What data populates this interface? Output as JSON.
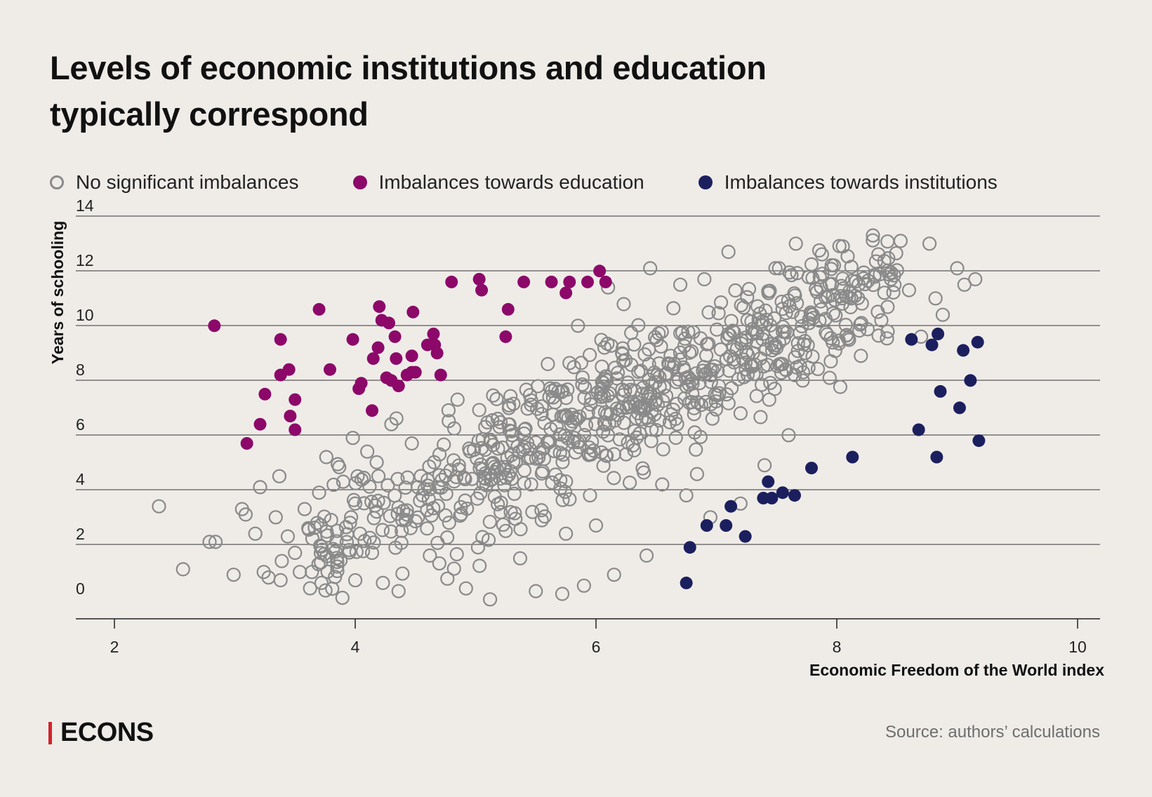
{
  "brand": {
    "name": "ECONS",
    "accent": "#D2232A"
  },
  "source": "Source: authors’ calculations",
  "chart_data": {
    "type": "scatter",
    "title": "Levels of economic institutions and education typically correspond",
    "xlabel": "Economic Freedom of the World index",
    "ylabel": "Years of schooling",
    "xlim": [
      1.7,
      10.2
    ],
    "ylim": [
      -0.4,
      14
    ],
    "xticks": [
      2,
      4,
      6,
      8,
      10
    ],
    "yticks": [
      0,
      2,
      4,
      6,
      8,
      10,
      12,
      14
    ],
    "grid": "horizontal",
    "legend_position": "top",
    "series": [
      {
        "name": "No significant imbalances",
        "marker": "open-circle",
        "color": "#8A8A8A",
        "cloud_density": 720,
        "x": [
          2.37,
          2.57,
          2.79,
          2.84,
          2.99,
          3.06,
          3.09,
          3.17,
          3.21,
          3.24,
          3.28,
          3.34,
          3.37,
          3.38,
          3.39,
          3.44,
          3.5,
          3.54,
          3.58,
          3.61,
          3.64,
          3.7,
          3.72,
          3.76,
          3.8,
          3.85,
          3.9,
          3.95,
          3.98,
          4.02,
          4.04,
          4.1,
          4.14,
          4.19,
          4.23,
          4.3,
          4.36,
          4.42,
          4.47,
          4.52,
          4.62,
          4.7,
          4.78,
          4.85,
          4.92,
          4.97,
          5.02,
          5.08,
          5.12,
          5.2,
          5.25,
          5.3,
          5.37,
          5.45,
          5.5,
          5.55,
          5.6,
          5.66,
          5.72,
          5.75,
          5.82,
          5.85,
          5.9,
          5.95,
          6.0,
          6.07,
          6.1,
          6.15,
          6.25,
          6.35,
          6.42,
          6.45,
          6.55,
          6.62,
          6.7,
          6.75,
          6.82,
          6.9,
          6.95,
          7.02,
          7.1,
          7.2,
          7.3,
          7.4,
          7.52,
          7.6,
          7.66,
          7.72,
          7.8,
          7.88,
          7.95,
          8.05,
          8.12,
          8.2,
          8.3,
          8.37,
          8.45,
          8.53,
          8.6,
          8.7,
          8.77,
          8.82,
          8.88,
          9.0,
          9.06,
          9.15
        ],
        "y": [
          3.7,
          1.4,
          2.4,
          2.4,
          1.2,
          3.6,
          3.4,
          2.7,
          4.4,
          1.3,
          1.1,
          3.3,
          4.8,
          1.0,
          1.7,
          2.6,
          2.0,
          1.3,
          3.6,
          2.9,
          1.3,
          4.2,
          0.9,
          5.5,
          3.2,
          1.5,
          4.6,
          2.1,
          6.2,
          4.8,
          2.7,
          5.7,
          2.0,
          3.9,
          0.9,
          6.7,
          0.6,
          3.2,
          6.0,
          4.4,
          1.9,
          5.6,
          3.1,
          7.6,
          0.7,
          4.7,
          2.2,
          4.9,
          0.3,
          6.6,
          2.8,
          4.7,
          1.8,
          5.8,
          0.6,
          4.9,
          8.9,
          7.5,
          0.5,
          2.7,
          6.2,
          10.3,
          0.8,
          4.1,
          3.0,
          9.5,
          11.7,
          1.2,
          5.6,
          7.3,
          1.9,
          12.4,
          4.5,
          9.2,
          11.8,
          4.1,
          6.4,
          12.0,
          3.3,
          8.1,
          13.0,
          3.8,
          10.0,
          5.2,
          12.4,
          6.3,
          13.3,
          8.6,
          10.7,
          12.2,
          9.0,
          13.2,
          11.3,
          9.2,
          13.6,
          10.5,
          12.0,
          13.4,
          11.6,
          9.9,
          13.3,
          11.3,
          10.7,
          12.4,
          11.8,
          12.0
        ]
      },
      {
        "name": "Imbalances towards education",
        "marker": "filled-circle",
        "color": "#8C0869",
        "x": [
          2.83,
          3.1,
          3.21,
          3.25,
          3.38,
          3.38,
          3.45,
          3.46,
          3.5,
          3.5,
          3.7,
          3.79,
          3.98,
          4.03,
          4.05,
          4.14,
          4.15,
          4.19,
          4.2,
          4.22,
          4.26,
          4.28,
          4.3,
          4.33,
          4.34,
          4.36,
          4.43,
          4.47,
          4.47,
          4.48,
          4.5,
          4.6,
          4.65,
          4.66,
          4.68,
          4.71,
          4.8,
          5.03,
          5.05,
          5.25,
          5.27,
          5.4,
          5.63,
          5.75,
          5.78,
          5.93,
          6.03,
          6.08
        ],
        "y": [
          10.3,
          6.0,
          6.7,
          7.8,
          8.5,
          9.8,
          8.7,
          7.0,
          7.6,
          6.5,
          10.9,
          8.7,
          9.8,
          8.0,
          8.2,
          7.2,
          9.1,
          9.5,
          11.0,
          10.5,
          8.4,
          10.4,
          8.3,
          9.9,
          9.1,
          8.1,
          8.5,
          9.2,
          8.6,
          10.8,
          8.6,
          9.6,
          10.0,
          9.6,
          9.3,
          8.5,
          11.9,
          12.0,
          11.6,
          9.9,
          10.9,
          11.9,
          11.9,
          11.5,
          11.9,
          11.9,
          12.3,
          11.9
        ]
      },
      {
        "name": "Imbalances towards institutions",
        "marker": "filled-circle",
        "color": "#1C1F5E",
        "x": [
          6.75,
          6.78,
          6.92,
          7.08,
          7.12,
          7.24,
          7.39,
          7.43,
          7.46,
          7.55,
          7.65,
          7.79,
          8.13,
          8.62,
          8.68,
          8.79,
          8.83,
          8.84,
          8.86,
          9.02,
          9.05,
          9.11,
          9.17,
          9.18
        ],
        "y": [
          0.9,
          2.2,
          3.0,
          3.0,
          3.7,
          2.6,
          4.0,
          4.6,
          4.0,
          4.2,
          4.1,
          5.1,
          5.5,
          9.8,
          6.5,
          9.6,
          5.5,
          10.0,
          7.9,
          7.3,
          9.4,
          8.3,
          9.7,
          6.1
        ]
      }
    ]
  }
}
